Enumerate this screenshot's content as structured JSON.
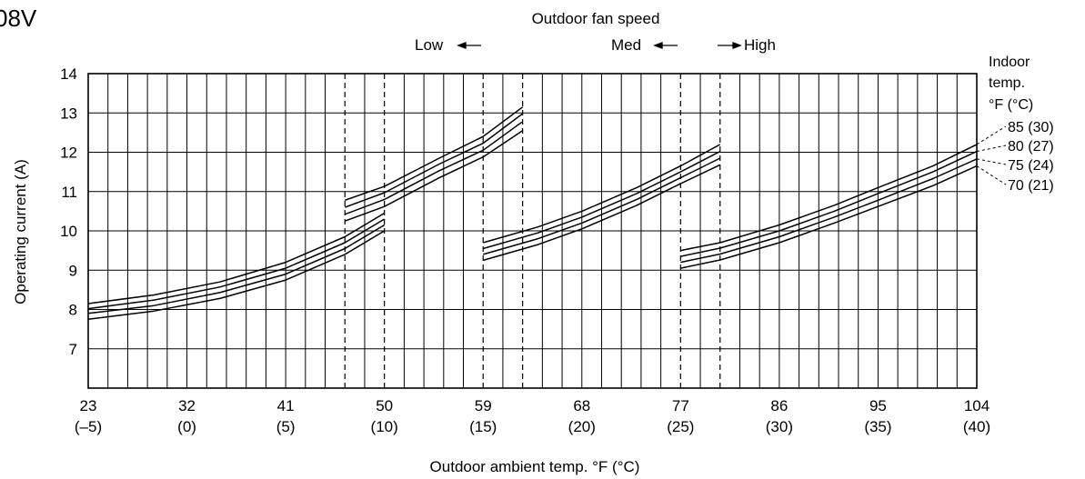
{
  "corner_label": "08V",
  "fan_speed": {
    "title": "Outdoor fan speed",
    "low": "Low",
    "med": "Med",
    "high": "High"
  },
  "indoor_legend": {
    "title_lines": [
      "Indoor",
      "temp.",
      "°F (°C)"
    ]
  },
  "chart_data": {
    "type": "line",
    "title": "",
    "xlabel": "Outdoor ambient temp. °F (°C)",
    "ylabel": "Operating current (A)",
    "xlim": [
      23,
      104
    ],
    "ylim": [
      6,
      14
    ],
    "yticks": [
      7,
      8,
      9,
      10,
      11,
      12,
      13,
      14
    ],
    "xticks": [
      {
        "value": 23,
        "label": "23",
        "sublabel": "(–5)"
      },
      {
        "value": 32,
        "label": "32",
        "sublabel": "(0)"
      },
      {
        "value": 41,
        "label": "41",
        "sublabel": "(5)"
      },
      {
        "value": 50,
        "label": "50",
        "sublabel": "(10)"
      },
      {
        "value": 59,
        "label": "59",
        "sublabel": "(15)"
      },
      {
        "value": 68,
        "label": "68",
        "sublabel": "(20)"
      },
      {
        "value": 77,
        "label": "77",
        "sublabel": "(25)"
      },
      {
        "value": 86,
        "label": "86",
        "sublabel": "(30)"
      },
      {
        "value": 95,
        "label": "95",
        "sublabel": "(35)"
      },
      {
        "value": 104,
        "label": "104",
        "sublabel": "(40)"
      }
    ],
    "minor_x_step": 1.8,
    "grid": true,
    "fan_speed_boundaries": [
      46.4,
      50,
      59,
      62.6,
      77,
      80.6
    ],
    "series": [
      {
        "name": "85 (30)",
        "segments": [
          [
            [
              23,
              8.15
            ],
            [
              29,
              8.37
            ],
            [
              35,
              8.7
            ],
            [
              41,
              9.2
            ],
            [
              46.4,
              9.85
            ],
            [
              50,
              10.45
            ]
          ],
          [
            [
              46.4,
              10.78
            ],
            [
              50,
              11.13
            ],
            [
              55,
              11.85
            ],
            [
              59,
              12.4
            ],
            [
              62.6,
              13.15
            ]
          ],
          [
            [
              59,
              9.7
            ],
            [
              64,
              10.1
            ],
            [
              68,
              10.5
            ],
            [
              73,
              11.1
            ],
            [
              77,
              11.65
            ],
            [
              80.6,
              12.2
            ]
          ],
          [
            [
              77,
              9.5
            ],
            [
              80.6,
              9.7
            ],
            [
              86,
              10.15
            ],
            [
              91,
              10.65
            ],
            [
              95,
              11.1
            ],
            [
              100,
              11.65
            ],
            [
              104,
              12.2
            ]
          ]
        ]
      },
      {
        "name": "80 (27)",
        "segments": [
          [
            [
              23,
              8.02
            ],
            [
              29,
              8.24
            ],
            [
              35,
              8.57
            ],
            [
              41,
              9.05
            ],
            [
              46.4,
              9.7
            ],
            [
              50,
              10.3
            ]
          ],
          [
            [
              46.4,
              10.6
            ],
            [
              50,
              10.97
            ],
            [
              55,
              11.7
            ],
            [
              59,
              12.23
            ],
            [
              62.6,
              12.98
            ]
          ],
          [
            [
              59,
              9.55
            ],
            [
              64,
              9.95
            ],
            [
              68,
              10.35
            ],
            [
              73,
              10.95
            ],
            [
              77,
              11.5
            ],
            [
              80.6,
              12.02
            ]
          ],
          [
            [
              77,
              9.35
            ],
            [
              80.6,
              9.56
            ],
            [
              86,
              10.0
            ],
            [
              91,
              10.5
            ],
            [
              95,
              10.95
            ],
            [
              100,
              11.5
            ],
            [
              104,
              12.02
            ]
          ]
        ]
      },
      {
        "name": "75 (24)",
        "segments": [
          [
            [
              23,
              7.9
            ],
            [
              29,
              8.1
            ],
            [
              35,
              8.43
            ],
            [
              41,
              8.9
            ],
            [
              46.4,
              9.55
            ],
            [
              50,
              10.15
            ]
          ],
          [
            [
              46.4,
              10.42
            ],
            [
              50,
              10.8
            ],
            [
              55,
              11.53
            ],
            [
              59,
              12.05
            ],
            [
              62.6,
              12.78
            ]
          ],
          [
            [
              59,
              9.4
            ],
            [
              64,
              9.8
            ],
            [
              68,
              10.2
            ],
            [
              73,
              10.8
            ],
            [
              77,
              11.35
            ],
            [
              80.6,
              11.85
            ]
          ],
          [
            [
              77,
              9.2
            ],
            [
              80.6,
              9.41
            ],
            [
              86,
              9.85
            ],
            [
              91,
              10.35
            ],
            [
              95,
              10.78
            ],
            [
              100,
              11.33
            ],
            [
              104,
              11.83
            ]
          ]
        ]
      },
      {
        "name": "70 (21)",
        "segments": [
          [
            [
              23,
              7.75
            ],
            [
              29,
              7.96
            ],
            [
              35,
              8.28
            ],
            [
              41,
              8.75
            ],
            [
              46.4,
              9.4
            ],
            [
              50,
              10.0
            ]
          ],
          [
            [
              46.4,
              10.25
            ],
            [
              50,
              10.62
            ],
            [
              55,
              11.35
            ],
            [
              59,
              11.88
            ],
            [
              62.6,
              12.55
            ]
          ],
          [
            [
              59,
              9.25
            ],
            [
              64,
              9.65
            ],
            [
              68,
              10.05
            ],
            [
              73,
              10.65
            ],
            [
              77,
              11.2
            ],
            [
              80.6,
              11.68
            ]
          ],
          [
            [
              77,
              9.05
            ],
            [
              80.6,
              9.26
            ],
            [
              86,
              9.7
            ],
            [
              91,
              10.2
            ],
            [
              95,
              10.62
            ],
            [
              100,
              11.15
            ],
            [
              104,
              11.65
            ]
          ]
        ]
      }
    ]
  }
}
